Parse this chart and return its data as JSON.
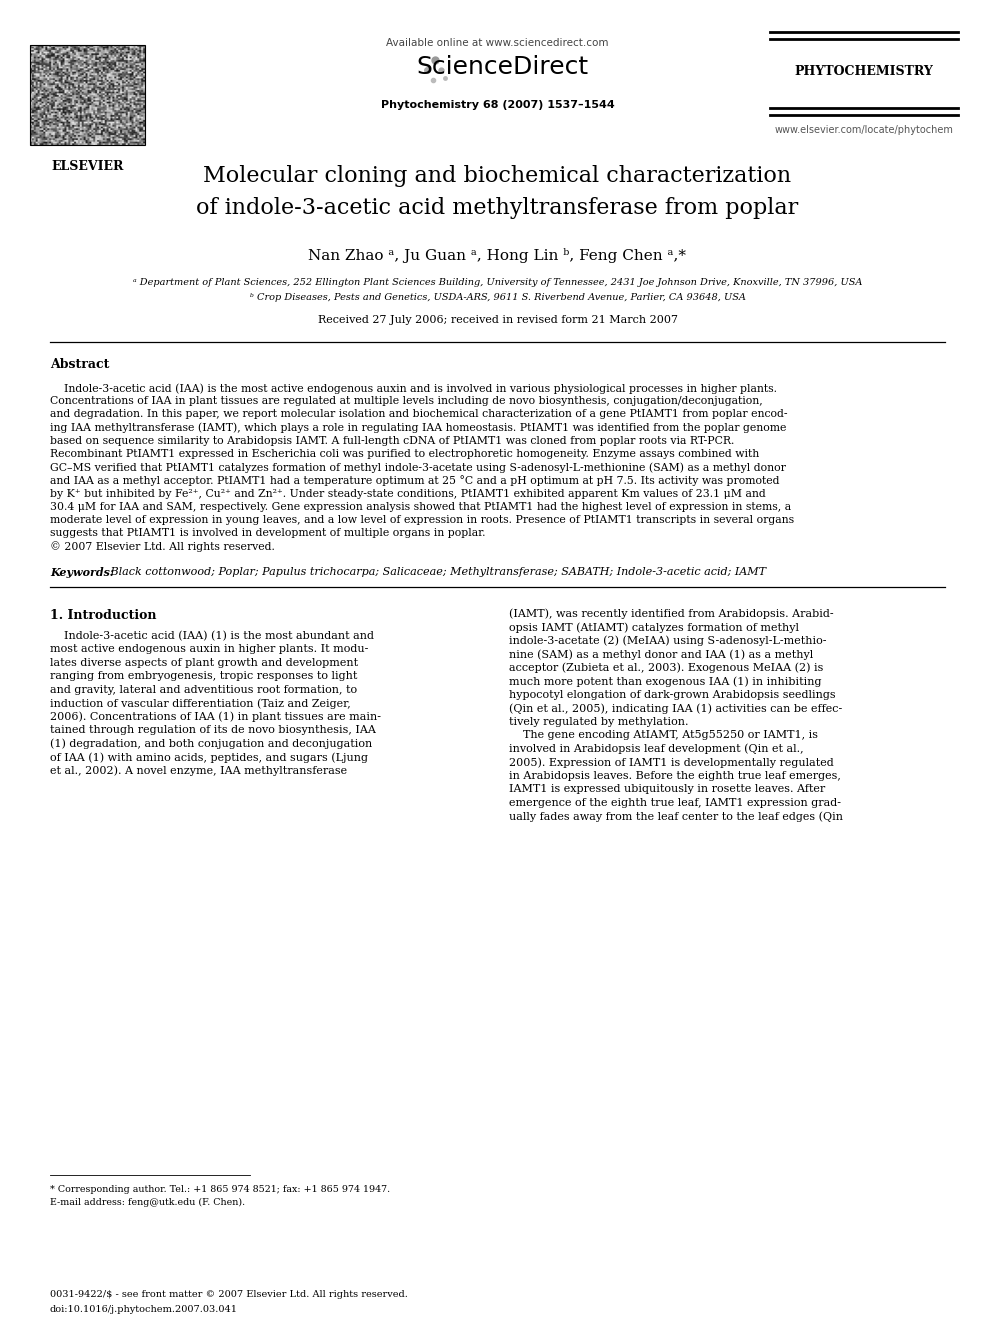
{
  "bg_color": "#ffffff",
  "header": {
    "available_online": "Available online at www.sciencedirect.com",
    "sciencedirect": "ScienceDirect",
    "journal_name": "PHYTOCHEMISTRY",
    "journal_info": "Phytochemistry 68 (2007) 1537–1544",
    "journal_url": "www.elsevier.com/locate/phytochem",
    "elsevier": "ELSEVIER"
  },
  "title_line1": "Molecular cloning and biochemical characterization",
  "title_line2": "of indole-3-acetic acid methyltransferase from poplar",
  "authors": "Nan Zhao ᵃ, Ju Guan ᵃ, Hong Lin ᵇ, Feng Chen ᵃ,*",
  "affiliation_a": "ᵃ Department of Plant Sciences, 252 Ellington Plant Sciences Building, University of Tennessee, 2431 Joe Johnson Drive, Knoxville, TN 37996, USA",
  "affiliation_b": "ᵇ Crop Diseases, Pests and Genetics, USDA-ARS, 9611 S. Riverbend Avenue, Parlier, CA 93648, USA",
  "received": "Received 27 July 2006; received in revised form 21 March 2007",
  "abstract_title": "Abstract",
  "keywords_label": "Keywords:",
  "keywords_text": " Black cottonwood; Poplar; Papulus trichocarpa; Salicaceae; Methyltransferase; SABATH; Indole-3-acetic acid; IAMT",
  "section1_title": "1. Introduction",
  "footnote_star": "* Corresponding author. Tel.: +1 865 974 8521; fax: +1 865 974 1947.",
  "footnote_email": "E-mail address: feng@utk.edu (F. Chen).",
  "footer_issn": "0031-9422/$ - see front matter © 2007 Elsevier Ltd. All rights reserved.",
  "footer_doi": "doi:10.1016/j.phytochem.2007.03.041",
  "abstract_lines": [
    "    Indole-3-acetic acid (IAA) is the most active endogenous auxin and is involved in various physiological processes in higher plants.",
    "Concentrations of IAA in plant tissues are regulated at multiple levels including de novo biosynthesis, conjugation/deconjugation,",
    "and degradation. In this paper, we report molecular isolation and biochemical characterization of a gene PtIAMT1 from poplar encod-",
    "ing IAA methyltransferase (IAMT), which plays a role in regulating IAA homeostasis. PtIAMT1 was identified from the poplar genome",
    "based on sequence similarity to Arabidopsis IAMT. A full-length cDNA of PtIAMT1 was cloned from poplar roots via RT-PCR.",
    "Recombinant PtIAMT1 expressed in Escherichia coli was purified to electrophoretic homogeneity. Enzyme assays combined with",
    "GC–MS verified that PtIAMT1 catalyzes formation of methyl indole-3-acetate using S-adenosyl-L-methionine (SAM) as a methyl donor",
    "and IAA as a methyl acceptor. PtIAMT1 had a temperature optimum at 25 °C and a pH optimum at pH 7.5. Its activity was promoted",
    "by K⁺ but inhibited by Fe²⁺, Cu²⁺ and Zn²⁺. Under steady-state conditions, PtIAMT1 exhibited apparent Km values of 23.1 μM and",
    "30.4 μM for IAA and SAM, respectively. Gene expression analysis showed that PtIAMT1 had the highest level of expression in stems, a",
    "moderate level of expression in young leaves, and a low level of expression in roots. Presence of PtIAMT1 transcripts in several organs",
    "suggests that PtIAMT1 is involved in development of multiple organs in poplar.",
    "© 2007 Elsevier Ltd. All rights reserved."
  ],
  "intro_left_lines": [
    "    Indole-3-acetic acid (IAA) (1) is the most abundant and",
    "most active endogenous auxin in higher plants. It modu-",
    "lates diverse aspects of plant growth and development",
    "ranging from embryogenesis, tropic responses to light",
    "and gravity, lateral and adventitious root formation, to",
    "induction of vascular differentiation (Taiz and Zeiger,",
    "2006). Concentrations of IAA (1) in plant tissues are main-",
    "tained through regulation of its de novo biosynthesis, IAA",
    "(1) degradation, and both conjugation and deconjugation",
    "of IAA (1) with amino acids, peptides, and sugars (Ljung",
    "et al., 2002). A novel enzyme, IAA methyltransferase"
  ],
  "intro_right_lines": [
    "(IAMT), was recently identified from Arabidopsis. Arabid-",
    "opsis IAMT (AtIAMT) catalyzes formation of methyl",
    "indole-3-acetate (2) (MeIAA) using S-adenosyl-L-methio-",
    "nine (SAM) as a methyl donor and IAA (1) as a methyl",
    "acceptor (Zubieta et al., 2003). Exogenous MeIAA (2) is",
    "much more potent than exogenous IAA (1) in inhibiting",
    "hypocotyl elongation of dark-grown Arabidopsis seedlings",
    "(Qin et al., 2005), indicating IAA (1) activities can be effec-",
    "tively regulated by methylation.",
    "    The gene encoding AtIAMT, At5g55250 or IAMT1, is",
    "involved in Arabidopsis leaf development (Qin et al.,",
    "2005). Expression of IAMT1 is developmentally regulated",
    "in Arabidopsis leaves. Before the eighth true leaf emerges,",
    "IAMT1 is expressed ubiquitously in rosette leaves. After",
    "emergence of the eighth true leaf, IAMT1 expression grad-",
    "ually fades away from the leaf center to the leaf edges (Qin"
  ]
}
